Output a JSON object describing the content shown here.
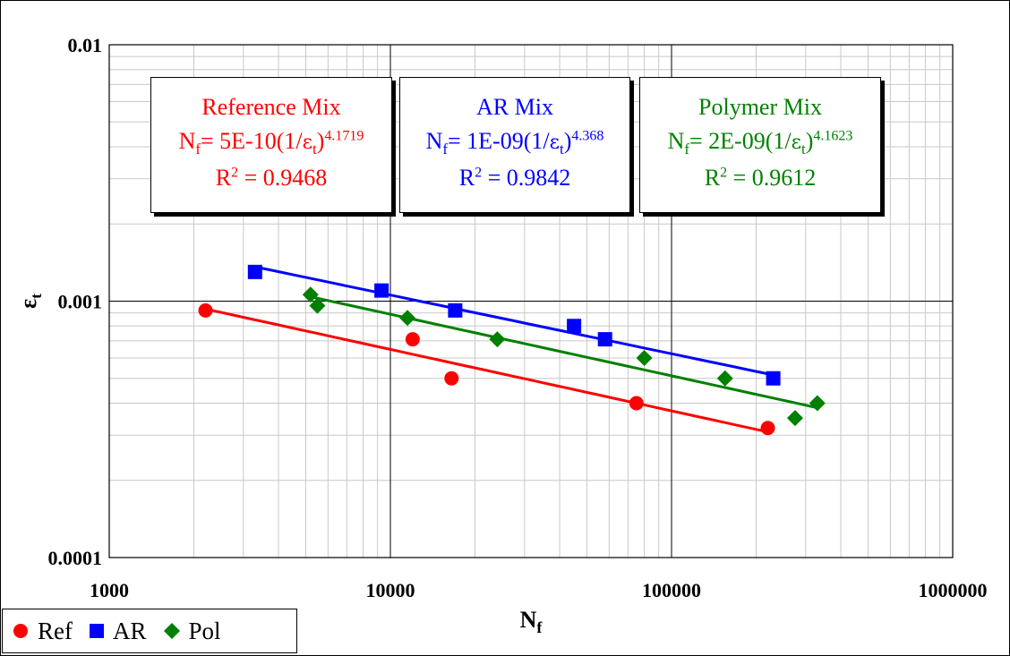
{
  "chart_data": {
    "type": "scatter",
    "title": "",
    "xlabel": "N",
    "xlabel_sub": "f",
    "ylabel": "ε",
    "ylabel_sub": "t",
    "x_scale": "log",
    "y_scale": "log",
    "xlim": [
      1000,
      1000000
    ],
    "ylim": [
      0.0001,
      0.01
    ],
    "x_ticks": [
      "1000",
      "10000",
      "100000",
      "1000000"
    ],
    "y_ticks": [
      "0.0001",
      "0.001",
      "0.01"
    ],
    "grid": true,
    "legend_position": "bottom-left",
    "series": [
      {
        "name": "Ref",
        "color": "#ff0000",
        "marker": "circle",
        "points": [
          [
            2200,
            0.00092
          ],
          [
            12000,
            0.00071
          ],
          [
            16500,
            0.0005
          ],
          [
            75000,
            0.0004
          ],
          [
            220000,
            0.00032
          ]
        ],
        "trend": {
          "coef": 5e-10,
          "exp": 4.1719,
          "x_range": [
            2200,
            220000
          ]
        }
      },
      {
        "name": "AR",
        "color": "#0000ff",
        "marker": "square",
        "points": [
          [
            3300,
            0.0013
          ],
          [
            9300,
            0.0011
          ],
          [
            17000,
            0.00092
          ],
          [
            45000,
            0.0008
          ],
          [
            58000,
            0.00071
          ],
          [
            230000,
            0.0005
          ]
        ],
        "trend": {
          "coef": 1e-09,
          "exp": 4.368,
          "x_range": [
            3300,
            230000
          ]
        }
      },
      {
        "name": "Pol",
        "color": "#008000",
        "marker": "diamond",
        "points": [
          [
            5200,
            0.00106
          ],
          [
            5500,
            0.00096
          ],
          [
            11500,
            0.00086
          ],
          [
            24000,
            0.00071
          ],
          [
            80000,
            0.0006
          ],
          [
            155000,
            0.0005
          ],
          [
            275000,
            0.00035
          ],
          [
            330000,
            0.0004
          ]
        ],
        "trend": {
          "coef": 2e-09,
          "exp": 4.1623,
          "x_range": [
            5200,
            330000
          ]
        }
      }
    ],
    "annotations": [
      {
        "title": "Reference Mix",
        "eq_lhs": "N",
        "eq_lhs_sub": "f",
        "eq_mid": "= 5E-10(1/",
        "eq_sym": "ε",
        "eq_sym_sub": "t",
        "eq_close": ")",
        "eq_exp": "4.1719",
        "r2_label": "R",
        "r2_exp": "2",
        "r2_value": "= 0.9468",
        "color": "#ff0000"
      },
      {
        "title": "AR Mix",
        "eq_lhs": "N",
        "eq_lhs_sub": "f",
        "eq_mid": "= 1E-09(1/",
        "eq_sym": "ε",
        "eq_sym_sub": "t",
        "eq_close": ")",
        "eq_exp": "4.368",
        "r2_label": "R",
        "r2_exp": "2",
        "r2_value": "= 0.9842",
        "color": "#0000ff"
      },
      {
        "title": "Polymer Mix",
        "eq_lhs": "N",
        "eq_lhs_sub": "f",
        "eq_mid": "= 2E-09(1/",
        "eq_sym": "ε",
        "eq_sym_sub": "t",
        "eq_close": ")",
        "eq_exp": "4.1623",
        "r2_label": "R",
        "r2_exp": "2",
        "r2_value": "= 0.9612",
        "color": "#008000"
      }
    ]
  }
}
